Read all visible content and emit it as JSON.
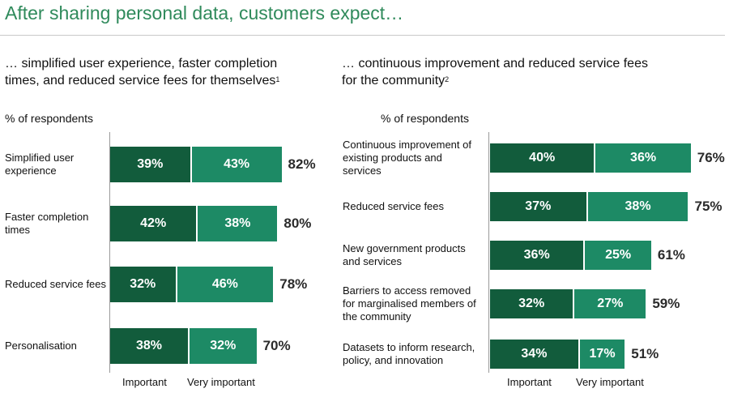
{
  "title": "After sharing personal data, customers expect…",
  "chart_data": [
    {
      "type": "bar",
      "stacked": true,
      "orientation": "horizontal",
      "subtitle": "… simplified user experience, faster completion times, and reduced service fees for themselves",
      "footnote_marker": "1",
      "unit_label": "% of respondents",
      "categories": [
        "Simplified user experience",
        "Faster completion times",
        "Reduced service fees",
        "Personalisation"
      ],
      "series": [
        {
          "name": "Important",
          "values": [
            39,
            42,
            32,
            38
          ],
          "color": "#125c3c"
        },
        {
          "name": "Very important",
          "values": [
            43,
            38,
            46,
            32
          ],
          "color": "#1d8a65"
        }
      ],
      "totals": [
        82,
        80,
        78,
        70
      ],
      "xlim": [
        0,
        90
      ],
      "grid": false,
      "legend_position": "bottom"
    },
    {
      "type": "bar",
      "stacked": true,
      "orientation": "horizontal",
      "subtitle": "… continuous improvement and reduced service fees for the community",
      "footnote_marker": "2",
      "unit_label": "% of respondents",
      "categories": [
        "Continuous improvement of existing products and services",
        "Reduced service fees",
        "New government products and services",
        "Barriers to access removed for marginalised members of the community",
        "Datasets to inform research, policy, and innovation"
      ],
      "series": [
        {
          "name": "Important",
          "values": [
            40,
            37,
            36,
            32,
            34
          ],
          "color": "#125c3c"
        },
        {
          "name": "Very important",
          "values": [
            36,
            38,
            25,
            27,
            17
          ],
          "color": "#1d8a65"
        }
      ],
      "totals": [
        76,
        75,
        61,
        59,
        51
      ],
      "xlim": [
        0,
        90
      ],
      "grid": false,
      "legend_position": "bottom"
    }
  ]
}
